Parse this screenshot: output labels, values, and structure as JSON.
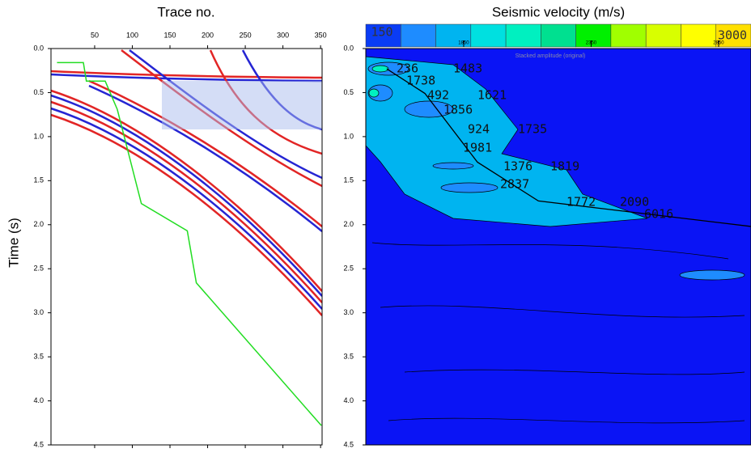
{
  "chart_data": [
    {
      "type": "line",
      "title": "Trace no.",
      "y_label": "Time (s)",
      "xlim": [
        -8,
        352
      ],
      "xticks": [
        50,
        100,
        150,
        200,
        250,
        300,
        350
      ],
      "ylim": [
        0,
        4.5
      ],
      "y_inverted": true,
      "yticks": [
        {
          "value": 0,
          "label": "0.0"
        },
        {
          "value": 0.5,
          "label": "0.5"
        },
        {
          "value": 1,
          "label": "1.0"
        },
        {
          "value": 1.5,
          "label": "1.5"
        },
        {
          "value": 2,
          "label": "2.0"
        },
        {
          "value": 2.5,
          "label": "2.5"
        },
        {
          "value": 3,
          "label": "3.0"
        },
        {
          "value": 3.5,
          "label": "3.5"
        },
        {
          "value": 4,
          "label": "4.0"
        },
        {
          "value": 4.5,
          "label": "4.5"
        }
      ],
      "x": [
        0,
        35,
        39,
        64,
        80,
        112,
        173,
        185,
        351
      ],
      "values": [
        0.16,
        0.16,
        0.37,
        0.37,
        0.69,
        1.76,
        2.07,
        2.66,
        4.28
      ],
      "color": "#22dd22"
    },
    {
      "type": "contour",
      "title": "Seismic velocity (m/s)",
      "subtitle": "Stacked amplitude (original)",
      "xlim": [
        1466,
        2977
      ],
      "xticks": [
        1850,
        2350,
        2850
      ],
      "ylim": [
        0,
        4.5
      ],
      "y_inverted": true,
      "yticks": [
        {
          "value": 0,
          "label": "0.0"
        },
        {
          "value": 0.5,
          "label": "0.5"
        },
        {
          "value": 1,
          "label": "1.0"
        },
        {
          "value": 1.5,
          "label": "1.5"
        },
        {
          "value": 2,
          "label": "2.0"
        },
        {
          "value": 2.5,
          "label": "2.5"
        },
        {
          "value": 3,
          "label": "3.0"
        },
        {
          "value": 3.5,
          "label": "3.5"
        },
        {
          "value": 4,
          "label": "4.0"
        },
        {
          "value": 4.5,
          "label": "4.5"
        }
      ],
      "colorbar_colors": [
        "#0a3cf5",
        "#1e8cff",
        "#00b4f0",
        "#00e0e0",
        "#00f0c0",
        "#00e090",
        "#00f000",
        "#a0ff00",
        "#d8ff00",
        "#ffff00",
        "#ffe000"
      ],
      "colorbar_labels": [
        "150",
        "3000"
      ],
      "background": "#0a14f5",
      "x": [
        1548,
        1698,
        1904,
        2143,
        2977
      ],
      "values": [
        0.23,
        0.51,
        1.29,
        1.73,
        2.02
      ],
      "color": "#000000",
      "annotations": [
        "236",
        "1483",
        "1738",
        "492",
        "1621",
        "1856",
        "924",
        "1735",
        "1981",
        "1376",
        "1819",
        "2837",
        "1772",
        "2090",
        "6016"
      ]
    }
  ]
}
